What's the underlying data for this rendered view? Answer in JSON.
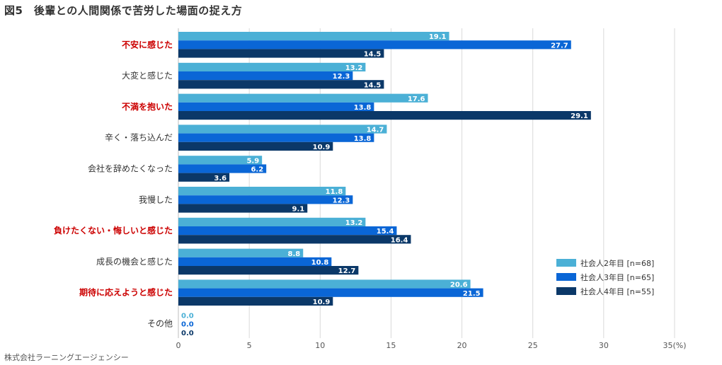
{
  "title": "図5　後輩との人間関係で苦労した場面の捉え方",
  "footer": "株式会社ラーニングエージェンシー",
  "chart_data": {
    "type": "bar",
    "orientation": "horizontal",
    "categories": [
      {
        "label": "不安に感じた",
        "highlight": true
      },
      {
        "label": "大変と感じた",
        "highlight": false
      },
      {
        "label": "不満を抱いた",
        "highlight": true
      },
      {
        "label": "辛く・落ち込んだ",
        "highlight": false
      },
      {
        "label": "会社を辞めたくなった",
        "highlight": false
      },
      {
        "label": "我慢した",
        "highlight": false
      },
      {
        "label": "負けたくない・悔しいと感じた",
        "highlight": true
      },
      {
        "label": "成長の機会と感じた",
        "highlight": false
      },
      {
        "label": "期待に応えようと感じた",
        "highlight": true
      },
      {
        "label": "その他",
        "highlight": false
      }
    ],
    "series": [
      {
        "name": "社会人2年目 [n=68]",
        "color": "#4bb0d6",
        "values": [
          19.1,
          13.2,
          17.6,
          14.7,
          5.9,
          11.8,
          13.2,
          8.8,
          20.6,
          0.0
        ]
      },
      {
        "name": "社会人3年目 [n=65]",
        "color": "#0a66d6",
        "values": [
          27.7,
          12.3,
          13.8,
          13.8,
          6.2,
          12.3,
          15.4,
          10.8,
          21.5,
          0.0
        ]
      },
      {
        "name": "社会人4年目 [n=55]",
        "color": "#0b3868",
        "values": [
          14.5,
          14.5,
          29.1,
          10.9,
          3.6,
          9.1,
          16.4,
          12.7,
          10.9,
          0.0
        ]
      }
    ],
    "xlim": [
      0,
      35
    ],
    "xticks": [
      0,
      5,
      10,
      15,
      20,
      25,
      30,
      35
    ],
    "xunit": "(%)",
    "grid": true,
    "legend_position": "right"
  }
}
